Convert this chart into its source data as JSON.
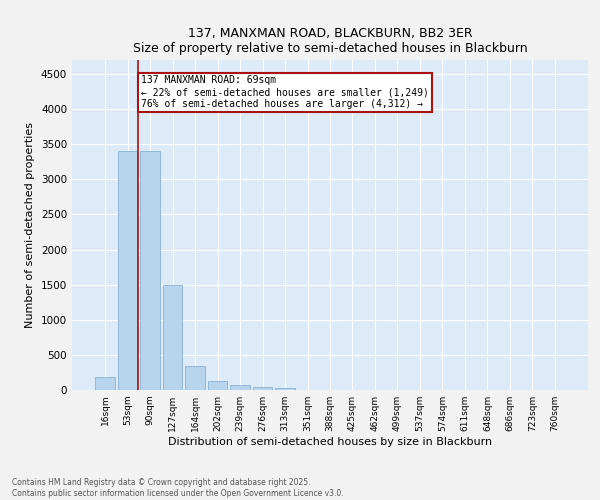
{
  "title1": "137, MANXMAN ROAD, BLACKBURN, BB2 3ER",
  "title2": "Size of property relative to semi-detached houses in Blackburn",
  "xlabel": "Distribution of semi-detached houses by size in Blackburn",
  "ylabel": "Number of semi-detached properties",
  "categories": [
    "16sqm",
    "53sqm",
    "90sqm",
    "127sqm",
    "164sqm",
    "202sqm",
    "239sqm",
    "276sqm",
    "313sqm",
    "351sqm",
    "388sqm",
    "425sqm",
    "462sqm",
    "499sqm",
    "537sqm",
    "574sqm",
    "611sqm",
    "648sqm",
    "686sqm",
    "723sqm",
    "760sqm"
  ],
  "values": [
    190,
    3400,
    3400,
    1500,
    340,
    130,
    70,
    45,
    25,
    5,
    0,
    0,
    0,
    0,
    0,
    0,
    0,
    0,
    0,
    0,
    0
  ],
  "bar_color": "#b8d4ec",
  "bar_edge_color": "#7aa8cc",
  "bg_color": "#ddeaf8",
  "grid_color": "#ffffff",
  "red_line_x": 1.48,
  "annotation_title": "137 MANXMAN ROAD: 69sqm",
  "annotation_line1": "← 22% of semi-detached houses are smaller (1,249)",
  "annotation_line2": "76% of semi-detached houses are larger (4,312) →",
  "red_line_color": "#aa1111",
  "footnote1": "Contains HM Land Registry data © Crown copyright and database right 2025.",
  "footnote2": "Contains public sector information licensed under the Open Government Licence v3.0.",
  "ylim": [
    0,
    4700
  ],
  "yticks": [
    0,
    500,
    1000,
    1500,
    2000,
    2500,
    3000,
    3500,
    4000,
    4500
  ]
}
